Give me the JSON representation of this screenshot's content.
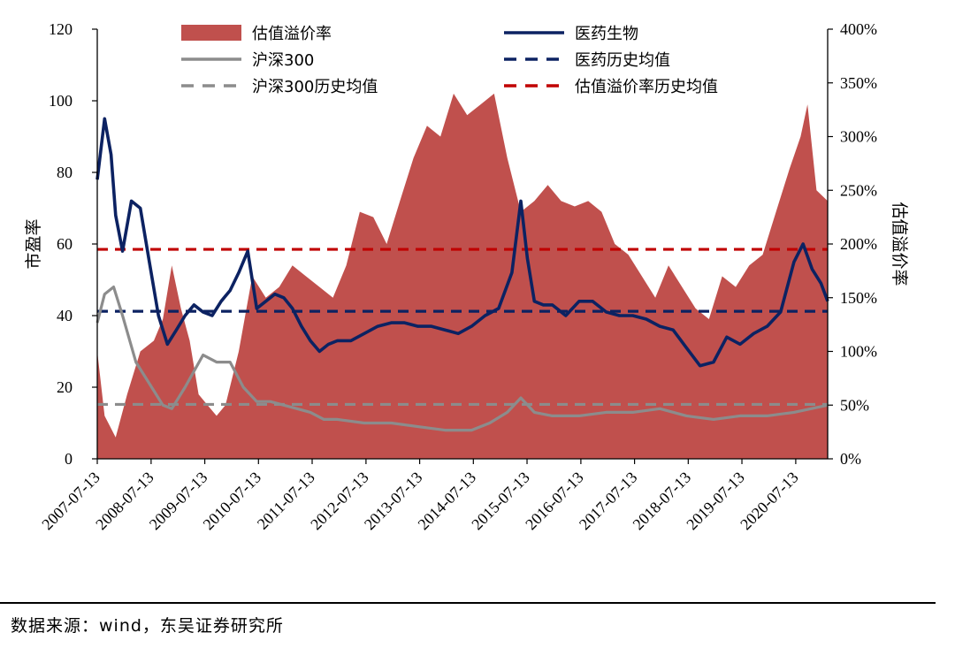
{
  "chart_data": {
    "type": "line",
    "title": "",
    "ylabel": "市盈率",
    "y2label": "估值溢价率",
    "ylim": [
      0,
      120
    ],
    "y2lim": [
      0,
      400
    ],
    "yticks": [
      "0",
      "20",
      "40",
      "60",
      "80",
      "100",
      "120"
    ],
    "y2ticks": [
      "0%",
      "50%",
      "100%",
      "150%",
      "200%",
      "250%",
      "300%",
      "350%",
      "400%"
    ],
    "x_range": [
      "2007-07-13",
      "2021-02-15"
    ],
    "xticks": [
      "2007-07-13",
      "2008-07-13",
      "2009-07-13",
      "2010-07-13",
      "2011-07-13",
      "2012-07-13",
      "2013-07-13",
      "2014-07-13",
      "2015-07-13",
      "2016-07-13",
      "2017-07-13",
      "2018-07-13",
      "2019-07-13",
      "2020-07-13"
    ],
    "legend_position": "top",
    "series": [
      {
        "name": "估值溢价率",
        "kind": "area",
        "axis": "right",
        "unit": "%",
        "color": "#c0504d",
        "points": [
          [
            "2007-07-13",
            100
          ],
          [
            "2007-09-01",
            40
          ],
          [
            "2007-11-15",
            20
          ],
          [
            "2008-02-01",
            60
          ],
          [
            "2008-05-01",
            100
          ],
          [
            "2008-08-01",
            110
          ],
          [
            "2008-10-01",
            130
          ],
          [
            "2008-12-01",
            180
          ],
          [
            "2009-02-01",
            140
          ],
          [
            "2009-04-01",
            110
          ],
          [
            "2009-06-01",
            60
          ],
          [
            "2009-08-01",
            50
          ],
          [
            "2009-10-01",
            40
          ],
          [
            "2009-12-01",
            50
          ],
          [
            "2010-03-01",
            100
          ],
          [
            "2010-06-01",
            170
          ],
          [
            "2010-09-01",
            150
          ],
          [
            "2010-12-01",
            160
          ],
          [
            "2011-03-01",
            180
          ],
          [
            "2011-06-01",
            170
          ],
          [
            "2011-09-01",
            160
          ],
          [
            "2011-12-01",
            150
          ],
          [
            "2012-03-01",
            180
          ],
          [
            "2012-06-01",
            230
          ],
          [
            "2012-09-01",
            225
          ],
          [
            "2012-12-01",
            200
          ],
          [
            "2013-03-01",
            240
          ],
          [
            "2013-06-01",
            280
          ],
          [
            "2013-09-01",
            310
          ],
          [
            "2013-12-01",
            300
          ],
          [
            "2014-03-01",
            340
          ],
          [
            "2014-06-01",
            320
          ],
          [
            "2014-09-01",
            330
          ],
          [
            "2014-12-01",
            340
          ],
          [
            "2015-03-01",
            280
          ],
          [
            "2015-06-01",
            230
          ],
          [
            "2015-09-01",
            240
          ],
          [
            "2015-12-01",
            255
          ],
          [
            "2016-03-01",
            240
          ],
          [
            "2016-06-01",
            235
          ],
          [
            "2016-09-01",
            240
          ],
          [
            "2016-12-01",
            230
          ],
          [
            "2017-03-01",
            200
          ],
          [
            "2017-06-01",
            190
          ],
          [
            "2017-09-01",
            170
          ],
          [
            "2017-12-01",
            150
          ],
          [
            "2018-03-01",
            180
          ],
          [
            "2018-06-01",
            160
          ],
          [
            "2018-09-01",
            140
          ],
          [
            "2018-12-01",
            130
          ],
          [
            "2019-03-01",
            170
          ],
          [
            "2019-06-01",
            160
          ],
          [
            "2019-09-01",
            180
          ],
          [
            "2019-12-01",
            190
          ],
          [
            "2020-03-01",
            230
          ],
          [
            "2020-06-01",
            270
          ],
          [
            "2020-08-15",
            300
          ],
          [
            "2020-10-01",
            330
          ],
          [
            "2020-12-01",
            250
          ],
          [
            "2021-02-15",
            240
          ]
        ]
      },
      {
        "name": "医药生物",
        "kind": "line",
        "axis": "left",
        "color": "#0c2262",
        "points": [
          [
            "2007-07-13",
            78
          ],
          [
            "2007-09-01",
            95
          ],
          [
            "2007-10-15",
            85
          ],
          [
            "2007-11-15",
            68
          ],
          [
            "2008-01-01",
            58
          ],
          [
            "2008-03-01",
            72
          ],
          [
            "2008-05-01",
            70
          ],
          [
            "2008-07-01",
            55
          ],
          [
            "2008-09-01",
            40
          ],
          [
            "2008-11-01",
            32
          ],
          [
            "2009-01-01",
            36
          ],
          [
            "2009-03-01",
            40
          ],
          [
            "2009-05-01",
            43
          ],
          [
            "2009-07-01",
            41
          ],
          [
            "2009-09-01",
            40
          ],
          [
            "2009-11-01",
            44
          ],
          [
            "2010-01-01",
            47
          ],
          [
            "2010-03-01",
            52
          ],
          [
            "2010-05-01",
            58
          ],
          [
            "2010-07-01",
            42
          ],
          [
            "2010-09-01",
            44
          ],
          [
            "2010-11-01",
            46
          ],
          [
            "2011-01-01",
            45
          ],
          [
            "2011-03-01",
            42
          ],
          [
            "2011-05-01",
            37
          ],
          [
            "2011-07-01",
            33
          ],
          [
            "2011-09-01",
            30
          ],
          [
            "2011-11-01",
            32
          ],
          [
            "2012-01-01",
            33
          ],
          [
            "2012-04-01",
            33
          ],
          [
            "2012-07-01",
            35
          ],
          [
            "2012-10-01",
            37
          ],
          [
            "2013-01-01",
            38
          ],
          [
            "2013-04-01",
            38
          ],
          [
            "2013-07-01",
            37
          ],
          [
            "2013-10-01",
            37
          ],
          [
            "2014-01-01",
            36
          ],
          [
            "2014-04-01",
            35
          ],
          [
            "2014-07-01",
            37
          ],
          [
            "2014-10-01",
            40
          ],
          [
            "2015-01-01",
            42
          ],
          [
            "2015-04-01",
            52
          ],
          [
            "2015-06-01",
            72
          ],
          [
            "2015-07-15",
            56
          ],
          [
            "2015-09-01",
            44
          ],
          [
            "2015-11-01",
            43
          ],
          [
            "2016-01-01",
            43
          ],
          [
            "2016-04-01",
            40
          ],
          [
            "2016-07-01",
            44
          ],
          [
            "2016-10-01",
            44
          ],
          [
            "2017-01-01",
            41
          ],
          [
            "2017-04-01",
            40
          ],
          [
            "2017-07-01",
            40
          ],
          [
            "2017-10-01",
            39
          ],
          [
            "2018-01-01",
            37
          ],
          [
            "2018-04-01",
            36
          ],
          [
            "2018-07-01",
            31
          ],
          [
            "2018-10-01",
            26
          ],
          [
            "2019-01-01",
            27
          ],
          [
            "2019-04-01",
            34
          ],
          [
            "2019-07-01",
            32
          ],
          [
            "2019-10-01",
            35
          ],
          [
            "2020-01-01",
            37
          ],
          [
            "2020-04-01",
            41
          ],
          [
            "2020-07-01",
            55
          ],
          [
            "2020-09-01",
            60
          ],
          [
            "2020-11-01",
            53
          ],
          [
            "2021-01-01",
            49
          ],
          [
            "2021-02-15",
            44
          ]
        ]
      },
      {
        "name": "沪深300",
        "kind": "line",
        "axis": "left",
        "color": "#8c8c8c",
        "points": [
          [
            "2007-07-13",
            38
          ],
          [
            "2007-09-01",
            46
          ],
          [
            "2007-11-01",
            48
          ],
          [
            "2008-01-01",
            40
          ],
          [
            "2008-04-01",
            27
          ],
          [
            "2008-07-01",
            21
          ],
          [
            "2008-10-01",
            15
          ],
          [
            "2008-12-01",
            14
          ],
          [
            "2009-03-01",
            20
          ],
          [
            "2009-07-01",
            29
          ],
          [
            "2009-10-01",
            27
          ],
          [
            "2010-01-01",
            27
          ],
          [
            "2010-04-01",
            20
          ],
          [
            "2010-07-01",
            16
          ],
          [
            "2010-10-01",
            16
          ],
          [
            "2011-01-01",
            15
          ],
          [
            "2011-04-01",
            14
          ],
          [
            "2011-07-01",
            13
          ],
          [
            "2011-10-01",
            11
          ],
          [
            "2012-01-01",
            11
          ],
          [
            "2012-07-01",
            10
          ],
          [
            "2013-01-01",
            10
          ],
          [
            "2013-07-01",
            9
          ],
          [
            "2014-01-01",
            8
          ],
          [
            "2014-07-01",
            8
          ],
          [
            "2014-11-01",
            10
          ],
          [
            "2015-03-01",
            13
          ],
          [
            "2015-06-01",
            17
          ],
          [
            "2015-09-01",
            13
          ],
          [
            "2016-01-01",
            12
          ],
          [
            "2016-07-01",
            12
          ],
          [
            "2017-01-01",
            13
          ],
          [
            "2017-07-01",
            13
          ],
          [
            "2018-01-01",
            14
          ],
          [
            "2018-07-01",
            12
          ],
          [
            "2019-01-01",
            11
          ],
          [
            "2019-07-01",
            12
          ],
          [
            "2020-01-01",
            12
          ],
          [
            "2020-07-01",
            13
          ],
          [
            "2021-02-15",
            15
          ]
        ]
      },
      {
        "name": "医药历史均值",
        "kind": "hline",
        "axis": "left",
        "color": "#0c2262",
        "value": 41.2
      },
      {
        "name": "沪深300历史均值",
        "kind": "hline",
        "axis": "left",
        "color": "#8c8c8c",
        "value": 15.2
      },
      {
        "name": "估值溢价率历史均值",
        "kind": "hline",
        "axis": "right",
        "unit": "%",
        "color": "#c00000",
        "value": 195
      }
    ]
  },
  "source": "数据来源：wind，东吴证券研究所"
}
